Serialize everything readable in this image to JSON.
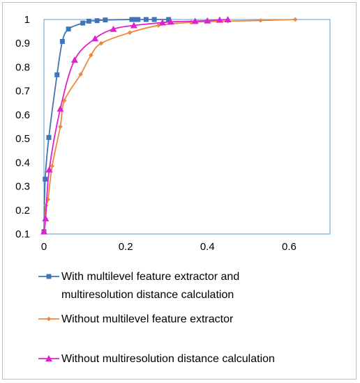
{
  "chart_data": {
    "type": "line",
    "title": "",
    "xlabel": "",
    "ylabel": "",
    "xlim": [
      0,
      0.7
    ],
    "ylim": [
      0.1,
      1
    ],
    "x_ticks": [
      "0",
      "0.2",
      "0.4",
      "0.6"
    ],
    "y_ticks": [
      "0.1",
      "0.2",
      "0.3",
      "0.4",
      "0.5",
      "0.6",
      "0.7",
      "0.8",
      "0.9",
      "1"
    ],
    "grid": false,
    "legend_position": "bottom",
    "series": [
      {
        "name": "With multilevel feature extractor and multiresolution distance calculation",
        "color": "#3f74b8",
        "marker": "square",
        "points": [
          [
            0,
            0.11
          ],
          [
            0.003,
            0.33
          ],
          [
            0.012,
            0.505
          ],
          [
            0.032,
            0.768
          ],
          [
            0.045,
            0.908
          ],
          [
            0.06,
            0.96
          ],
          [
            0.095,
            0.985
          ],
          [
            0.11,
            0.993
          ],
          [
            0.13,
            0.995
          ],
          [
            0.15,
            0.998
          ],
          [
            0.215,
            1.0
          ],
          [
            0.225,
            1.0
          ],
          [
            0.23,
            1.0
          ],
          [
            0.25,
            1.0
          ],
          [
            0.27,
            1.0
          ],
          [
            0.305,
            1.0
          ]
        ]
      },
      {
        "name": "Without multilevel feature extractor",
        "color": "#f0883a",
        "marker": "diamond",
        "points": [
          [
            0,
            0.11
          ],
          [
            0.005,
            0.22
          ],
          [
            0.01,
            0.245
          ],
          [
            0.02,
            0.385
          ],
          [
            0.04,
            0.55
          ],
          [
            0.05,
            0.66
          ],
          [
            0.09,
            0.77
          ],
          [
            0.115,
            0.85
          ],
          [
            0.14,
            0.9
          ],
          [
            0.21,
            0.945
          ],
          [
            0.28,
            0.975
          ],
          [
            0.36,
            0.988
          ],
          [
            0.45,
            0.993
          ],
          [
            0.53,
            0.996
          ],
          [
            0.615,
            1.0
          ]
        ]
      },
      {
        "name": "Without multiresolution distance calculation",
        "color": "#e020d0",
        "marker": "triangle",
        "points": [
          [
            0,
            0.11
          ],
          [
            0.004,
            0.165
          ],
          [
            0.013,
            0.37
          ],
          [
            0.04,
            0.625
          ],
          [
            0.075,
            0.83
          ],
          [
            0.125,
            0.92
          ],
          [
            0.17,
            0.96
          ],
          [
            0.22,
            0.975
          ],
          [
            0.29,
            0.987
          ],
          [
            0.31,
            0.99
          ],
          [
            0.37,
            0.993
          ],
          [
            0.4,
            0.995
          ],
          [
            0.43,
            0.998
          ],
          [
            0.45,
            1.0
          ]
        ]
      }
    ]
  }
}
